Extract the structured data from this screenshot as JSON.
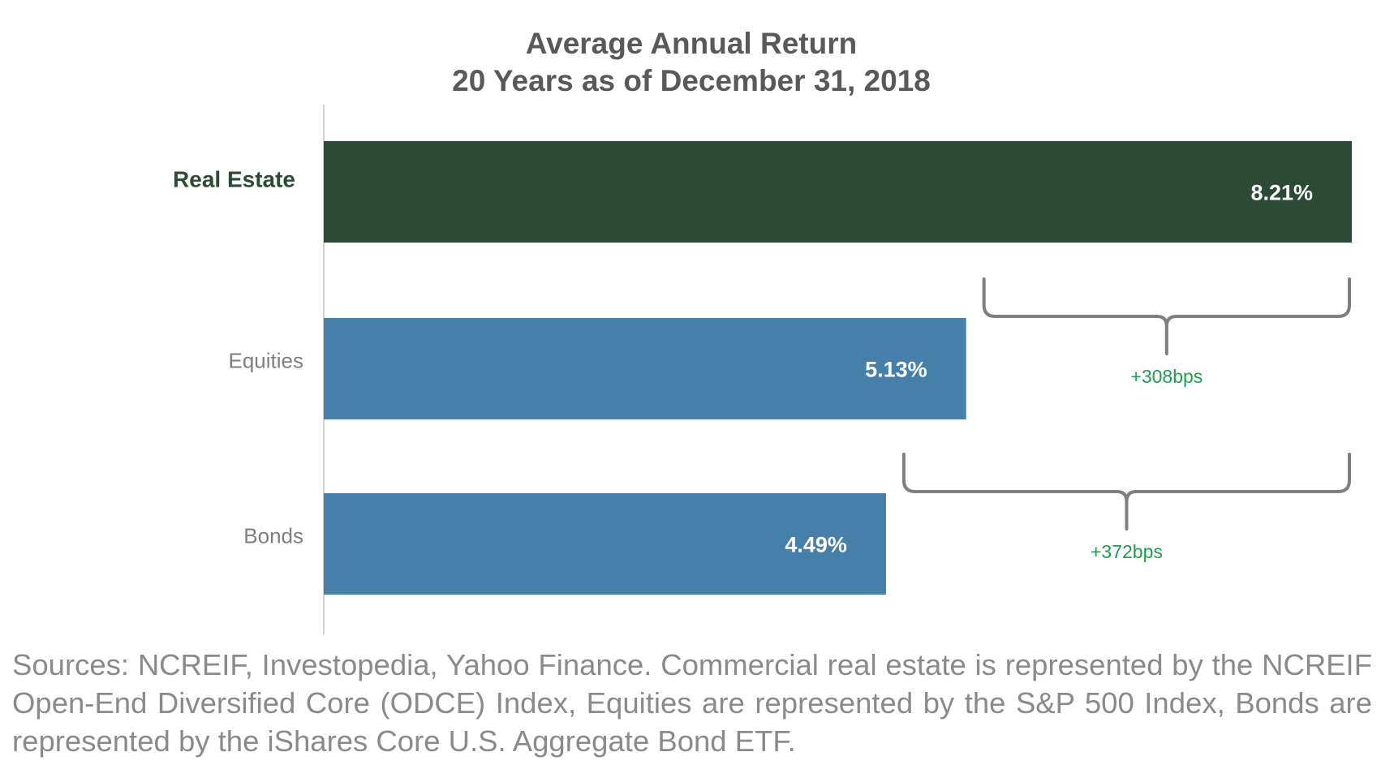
{
  "chart_data": {
    "type": "bar",
    "orientation": "horizontal",
    "title": "Average Annual Return",
    "subtitle": "20 Years as of December 31, 2018",
    "categories": [
      "Real Estate",
      "Equities",
      "Bonds"
    ],
    "values": [
      8.21,
      5.13,
      4.49
    ],
    "value_labels": [
      "8.21%",
      "5.13%",
      "4.49%"
    ],
    "xlim": [
      0,
      8.21
    ],
    "grid": false,
    "legend": "none",
    "colors": {
      "Real Estate": "#2d4a37",
      "Equities": "#477fab",
      "Bonds": "#477fab",
      "highlight_label": "#2d4a37",
      "category_label": "#7f7f7f",
      "title": "#595959",
      "bracket": "#7f7f7f",
      "annotation": "#1e9e49"
    },
    "annotations": [
      {
        "text": "+308bps",
        "from": "Equities",
        "to": "Real Estate"
      },
      {
        "text": "+372bps",
        "from": "Bonds",
        "to": "Real Estate"
      }
    ]
  },
  "footer": {
    "sources": "Sources: NCREIF, Investopedia, Yahoo Finance. Commercial real estate is represented by the NCREIF Open-End Diversified Core (ODCE) Index, Equities are represented by the S&P 500 Index, Bonds are represented by the iShares Core U.S. Aggregate Bond ETF."
  }
}
